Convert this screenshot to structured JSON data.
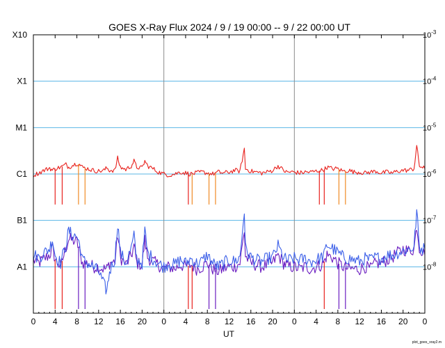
{
  "chart_data": {
    "type": "line",
    "title": "GOES X-Ray Flux   2024  /  9  /  19    00:00 --   9  /  22    00:00    UT",
    "xlabel": "UT",
    "credit": "plot_goes_xray2.m",
    "x_tick_labels": [
      "0",
      "4",
      "8",
      "12",
      "16",
      "20",
      "0",
      "4",
      "8",
      "12",
      "16",
      "20",
      "0",
      "4",
      "8",
      "12",
      "16",
      "20",
      "0"
    ],
    "x_range_hours": [
      0,
      72
    ],
    "day_divider_hours": [
      24,
      48
    ],
    "y_scale": "log",
    "y_range": [
      1e-09,
      0.001
    ],
    "left_axis_labels": [
      {
        "label": "X10",
        "value": 0.001
      },
      {
        "label": "X1",
        "value": 0.0001
      },
      {
        "label": "M1",
        "value": 1e-05
      },
      {
        "label": "C1",
        "value": 1e-06
      },
      {
        "label": "B1",
        "value": 1e-07
      },
      {
        "label": "A1",
        "value": 1e-08
      }
    ],
    "right_axis_labels": [
      {
        "base": "10",
        "exp": "-3",
        "value": 0.001
      },
      {
        "base": "10",
        "exp": "-4",
        "value": 0.0001
      },
      {
        "base": "10",
        "exp": "-5",
        "value": 1e-05
      },
      {
        "base": "10",
        "exp": "-6",
        "value": 1e-06
      },
      {
        "base": "10",
        "exp": "-7",
        "value": 1e-07
      },
      {
        "base": "10",
        "exp": "-8",
        "value": 1e-08
      }
    ],
    "grid": true,
    "colors": {
      "long_channel": "#e8201c",
      "long_channel_gap": "#f08a24",
      "short_channel_a": "#3a5ee8",
      "short_channel_b": "#6a1cc0",
      "grid": "#5ab4e6",
      "divider": "#8a8a8a"
    },
    "series": [
      {
        "key": "long",
        "color": "#e8201c",
        "x": [
          0,
          1,
          2,
          3,
          3.5,
          4,
          5,
          6,
          6.5,
          7,
          8,
          8.5,
          9,
          10,
          11,
          12,
          13,
          13.5,
          14,
          15,
          15.5,
          16,
          17,
          18,
          18.5,
          19,
          20,
          20.5,
          21,
          22,
          23,
          24,
          25,
          26,
          27,
          28,
          29,
          30,
          31,
          32,
          33,
          34,
          35,
          36,
          37,
          38,
          38.8,
          39,
          40,
          41,
          42,
          43,
          44,
          45,
          46,
          46.5,
          47,
          48,
          49,
          50,
          51,
          52,
          53,
          53.5,
          54,
          55,
          56,
          57,
          58,
          59,
          60,
          61,
          62,
          63,
          64,
          65,
          66,
          67,
          68,
          69,
          70,
          70.5,
          71,
          72
        ],
        "y": [
          9.5e-07,
          1.05e-06,
          1.2e-06,
          1.35e-06,
          1.2e-06,
          1.3e-06,
          1.4e-06,
          1.6e-06,
          1.4e-06,
          1.5e-06,
          1.7e-06,
          1.6e-06,
          1.4e-06,
          1.3e-06,
          1.2e-06,
          1.15e-06,
          1.2e-06,
          1.35e-06,
          1.2e-06,
          1.2e-06,
          2.2e-06,
          1.4e-06,
          1.25e-06,
          1.5e-06,
          1.9e-06,
          1.4e-06,
          1.35e-06,
          1.9e-06,
          1.5e-06,
          1.3e-06,
          1.1e-06,
          1e-06,
          9.5e-07,
          1e-06,
          1.1e-06,
          1.05e-06,
          1e-06,
          1.05e-06,
          1.1e-06,
          1.05e-06,
          1e-06,
          1.1e-06,
          1.05e-06,
          1.1e-06,
          1.2e-06,
          1.15e-06,
          3.5e-06,
          1.3e-06,
          1.15e-06,
          1.1e-06,
          1.05e-06,
          1.1e-06,
          1.2e-06,
          1.5e-06,
          1.2e-06,
          1.1e-06,
          1.1e-06,
          1.1e-06,
          1.05e-06,
          1.1e-06,
          1.1e-06,
          1.15e-06,
          1.2e-06,
          1.25e-06,
          1.4e-06,
          1.3e-06,
          1.3e-06,
          1.15e-06,
          1.2e-06,
          1.1e-06,
          1.1e-06,
          1.05e-06,
          1.1e-06,
          1.15e-06,
          1.05e-06,
          1.1e-06,
          1.05e-06,
          1.15e-06,
          1.2e-06,
          1.2e-06,
          1.3e-06,
          4e-06,
          1.5e-06,
          1.3e-06
        ]
      },
      {
        "key": "short_a",
        "color": "#3a5ee8",
        "x": [
          0,
          1,
          2,
          3,
          3.5,
          4,
          5,
          6,
          6.5,
          7,
          8,
          8.5,
          9,
          10,
          11,
          12,
          13,
          13.5,
          14,
          15,
          15.5,
          16,
          17,
          18,
          18.5,
          19,
          20,
          20.5,
          21,
          22,
          23,
          24,
          25,
          26,
          27,
          28,
          29,
          30,
          31,
          32,
          33,
          34,
          35,
          36,
          37,
          38,
          38.8,
          39,
          40,
          41,
          42,
          43,
          44,
          45,
          46,
          46.5,
          47,
          48,
          49,
          50,
          51,
          52,
          53,
          53.5,
          54,
          55,
          56,
          57,
          58,
          59,
          60,
          61,
          62,
          63,
          64,
          65,
          66,
          67,
          68,
          69,
          70,
          70.5,
          71,
          72
        ],
        "y": [
          1.8e-08,
          1.6e-08,
          2e-08,
          2.5e-08,
          4e-08,
          1.8e-08,
          1.2e-08,
          3e-08,
          6e-08,
          5e-08,
          4.5e-08,
          3e-08,
          1.4e-08,
          1.2e-08,
          1e-08,
          8e-09,
          4e-09,
          3e-09,
          8e-09,
          1.5e-08,
          9e-08,
          2e-08,
          1.2e-08,
          2.5e-08,
          4.5e-08,
          1.5e-08,
          1.2e-08,
          6e-08,
          2e-08,
          1.5e-08,
          1.2e-08,
          1e-08,
          1.2e-08,
          1.1e-08,
          1.4e-08,
          1.2e-08,
          1.5e-08,
          1.2e-08,
          1.3e-08,
          1.8e-08,
          1.2e-08,
          1e-08,
          1.2e-08,
          1.4e-08,
          1.3e-08,
          1.6e-08,
          1.6e-07,
          2.5e-08,
          1.6e-08,
          1.4e-08,
          1.3e-08,
          1.5e-08,
          1.6e-08,
          2.8e-08,
          1.6e-08,
          1.4e-08,
          1.4e-08,
          1.5e-08,
          1.4e-08,
          1.5e-08,
          1.3e-08,
          1.4e-08,
          1.6e-08,
          1.8e-08,
          3e-08,
          2.5e-08,
          2e-08,
          1.6e-08,
          1.5e-08,
          1.4e-08,
          1.3e-08,
          1.5e-08,
          1.4e-08,
          1.6e-08,
          1.5e-08,
          1.8e-08,
          1.8e-08,
          2e-08,
          2.2e-08,
          2.4e-08,
          2.6e-08,
          1.6e-07,
          2.6e-08,
          2.4e-08
        ]
      },
      {
        "key": "short_b",
        "color": "#6a1cc0",
        "x": [
          0,
          1,
          2,
          3,
          3.5,
          4,
          5,
          6,
          6.5,
          7,
          8,
          8.5,
          9,
          10,
          11,
          12,
          13,
          13.5,
          14,
          15,
          15.5,
          16,
          17,
          18,
          18.5,
          19,
          20,
          20.5,
          21,
          22,
          23,
          24,
          25,
          26,
          27,
          28,
          29,
          30,
          31,
          32,
          33,
          34,
          35,
          36,
          37,
          38,
          38.8,
          39,
          40,
          41,
          42,
          43,
          44,
          45,
          46,
          46.5,
          47,
          48,
          49,
          50,
          51,
          52,
          53,
          53.5,
          54,
          55,
          56,
          57,
          58,
          59,
          60,
          61,
          62,
          63,
          64,
          65,
          66,
          67,
          68,
          69,
          70,
          70.5,
          71,
          72
        ],
        "y": [
          1.4e-08,
          1.2e-08,
          1.5e-08,
          1.8e-08,
          2.6e-08,
          1.4e-08,
          1e-08,
          2.6e-08,
          4e-08,
          3.8e-08,
          3.4e-08,
          2.2e-08,
          1.2e-08,
          1.2e-08,
          1e-08,
          1e-08,
          9e-09,
          9e-09,
          1.2e-08,
          1.3e-08,
          5e-08,
          1.6e-08,
          1.1e-08,
          1.7e-08,
          2.8e-08,
          1.2e-08,
          1.1e-08,
          3.8e-08,
          1.6e-08,
          1.3e-08,
          1.1e-08,
          9e-09,
          1e-08,
          9e-09,
          1.1e-08,
          1e-08,
          1.1e-08,
          9e-09,
          1e-08,
          1.2e-08,
          9e-09,
          8e-09,
          9e-09,
          1e-08,
          1e-08,
          1.2e-08,
          6e-08,
          1.7e-08,
          1.2e-08,
          1.1e-08,
          1e-08,
          1.1e-08,
          1.2e-08,
          1.8e-08,
          1.2e-08,
          1.1e-08,
          1e-08,
          1e-08,
          9e-09,
          1e-08,
          9e-09,
          1e-08,
          1.1e-08,
          1.3e-08,
          1.8e-08,
          1.6e-08,
          1.2e-08,
          1e-08,
          9e-09,
          9e-09,
          9e-09,
          1e-08,
          9e-09,
          1.2e-08,
          1.2e-08,
          1.4e-08,
          1.6e-08,
          2e-08,
          2.4e-08,
          2.2e-08,
          2.4e-08,
          8e-08,
          2.6e-08,
          1.8e-08
        ]
      }
    ],
    "data_gaps": [
      {
        "x": 4.0,
        "series": "long",
        "color": "#e8201c"
      },
      {
        "x": 5.3,
        "series": "long",
        "color": "#e8201c"
      },
      {
        "x": 8.3,
        "series": "long",
        "color": "#f08a24"
      },
      {
        "x": 9.5,
        "series": "long",
        "color": "#f08a24"
      },
      {
        "x": 4.0,
        "series": "short",
        "color": "#e8201c"
      },
      {
        "x": 5.3,
        "series": "short",
        "color": "#e8201c"
      },
      {
        "x": 8.3,
        "series": "short",
        "color": "#6a1cc0"
      },
      {
        "x": 9.5,
        "series": "short",
        "color": "#6a1cc0"
      },
      {
        "x": 28.5,
        "series": "long",
        "color": "#e8201c"
      },
      {
        "x": 29.2,
        "series": "long",
        "color": "#f08a24"
      },
      {
        "x": 32.3,
        "series": "long",
        "color": "#f08a24"
      },
      {
        "x": 33.5,
        "series": "long",
        "color": "#f08a24"
      },
      {
        "x": 28.5,
        "series": "short",
        "color": "#e8201c"
      },
      {
        "x": 29.2,
        "series": "short",
        "color": "#e8201c"
      },
      {
        "x": 32.3,
        "series": "short",
        "color": "#6a1cc0"
      },
      {
        "x": 33.5,
        "series": "short",
        "color": "#6a1cc0"
      },
      {
        "x": 52.6,
        "series": "long",
        "color": "#e8201c"
      },
      {
        "x": 53.5,
        "series": "long",
        "color": "#e8201c"
      },
      {
        "x": 56.2,
        "series": "long",
        "color": "#f08a24"
      },
      {
        "x": 57.4,
        "series": "long",
        "color": "#f08a24"
      },
      {
        "x": 53.5,
        "series": "short",
        "color": "#e8201c"
      },
      {
        "x": 56.2,
        "series": "short",
        "color": "#6a1cc0"
      },
      {
        "x": 57.4,
        "series": "short",
        "color": "#6a1cc0"
      }
    ]
  }
}
